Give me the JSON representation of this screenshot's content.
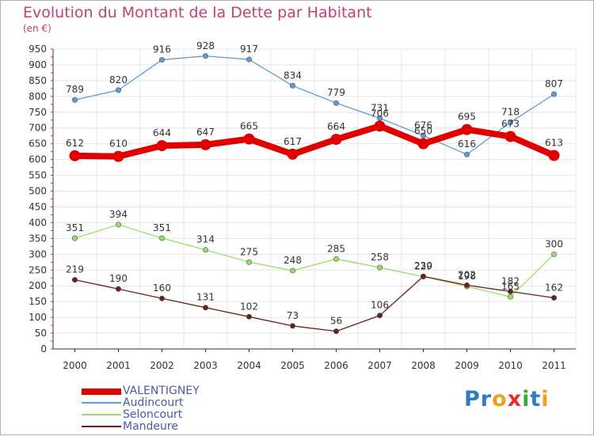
{
  "title": "Evolution du Montant de la Dette par Habitant",
  "subtitle": "(en €)",
  "brand": {
    "name": "Proxiti",
    "letters": [
      {
        "ch": "P",
        "color": "#2e7dc4"
      },
      {
        "ch": "r",
        "color": "#2e7dc4"
      },
      {
        "ch": "o",
        "color": "#f0a020"
      },
      {
        "ch": "x",
        "color": "#e23030"
      },
      {
        "ch": "i",
        "color": "#3aaa35"
      },
      {
        "ch": "t",
        "color": "#2e7dc4"
      },
      {
        "ch": "i",
        "color": "#f0a020"
      }
    ]
  },
  "chart_data": {
    "type": "line",
    "x": [
      "2000",
      "2001",
      "2002",
      "2003",
      "2004",
      "2005",
      "2006",
      "2007",
      "2008",
      "2009",
      "2010",
      "2011"
    ],
    "ylim": [
      0,
      950
    ],
    "yticks": [
      0,
      50,
      100,
      150,
      200,
      250,
      300,
      350,
      400,
      450,
      500,
      550,
      600,
      650,
      700,
      750,
      800,
      850,
      900,
      950
    ],
    "grid": true,
    "legend_position": "bottom-left",
    "series": [
      {
        "name": "VALENTIGNEY",
        "color": "#e00000",
        "width": 8,
        "marker": 7,
        "values": [
          612,
          610,
          644,
          647,
          665,
          617,
          664,
          706,
          650,
          695,
          673,
          613
        ]
      },
      {
        "name": "Audincourt",
        "color": "#5e9ed6",
        "width": 1.3,
        "marker": 3.2,
        "values": [
          789,
          820,
          916,
          928,
          917,
          834,
          779,
          731,
          676,
          616,
          718,
          807
        ]
      },
      {
        "name": "Seloncourt",
        "color": "#99dd66",
        "width": 1.3,
        "marker": 3.2,
        "values": [
          351,
          394,
          351,
          314,
          275,
          248,
          285,
          258,
          229,
          198,
          165,
          300
        ]
      },
      {
        "name": "Mandeure",
        "color": "#6b1f1f",
        "width": 1.3,
        "marker": 3.2,
        "values": [
          219,
          190,
          160,
          131,
          102,
          73,
          56,
          106,
          230,
          202,
          182,
          162
        ]
      }
    ],
    "data_labels": [
      {
        "series": 0,
        "labels": [
          "612",
          "610",
          "644",
          "647",
          "665",
          "617",
          "664",
          "706",
          "650",
          "695",
          "673",
          "613"
        ]
      },
      {
        "series": 1,
        "labels": [
          "789",
          "820",
          "916",
          "928",
          "917",
          "834",
          "779",
          "731",
          "676",
          "616",
          "718",
          "807"
        ]
      },
      {
        "series": 2,
        "labels": [
          "351",
          "394",
          "351",
          "314",
          "275",
          "248",
          "285",
          "258",
          "229",
          "198",
          "165",
          "300"
        ]
      },
      {
        "series": 3,
        "labels": [
          "219",
          "190",
          "160",
          "131",
          "102",
          "73",
          "56",
          "106",
          "230",
          "202",
          "182",
          "162"
        ]
      }
    ]
  }
}
